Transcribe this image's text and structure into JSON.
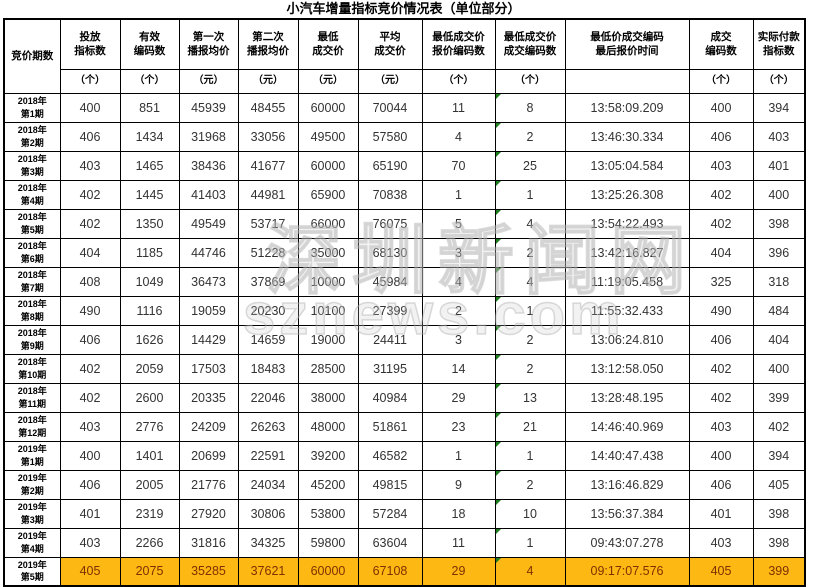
{
  "title": "小汽车增量指标竞价情况表（单位部分）",
  "watermark": {
    "line1": "深圳新闻网",
    "line2": "sznews.com"
  },
  "colors": {
    "border": "#000000",
    "body_text": "#333333",
    "header_text": "#000000",
    "highlight_bg": "#FDB813",
    "highlight_text": "#7F3000",
    "triangle": "#1E7E1E"
  },
  "table": {
    "columns": [
      {
        "label": "竞价期数",
        "unit": ""
      },
      {
        "label": "投放\n指标数",
        "unit": "（个）"
      },
      {
        "label": "有效\n编码数",
        "unit": "（个）"
      },
      {
        "label": "第一次\n播报均价",
        "unit": "（元）"
      },
      {
        "label": "第二次\n播报均价",
        "unit": "（元）"
      },
      {
        "label": "最低\n成交价",
        "unit": "（元）"
      },
      {
        "label": "平均\n成交价",
        "unit": "（元）"
      },
      {
        "label": "最低成交价\n报价编码数",
        "unit": "（个）"
      },
      {
        "label": "最低成交价\n成交编码数",
        "unit": "（个）"
      },
      {
        "label": "最低价成交编码\n最后报价时间",
        "unit": ""
      },
      {
        "label": "成交\n编码数",
        "unit": "（个）"
      },
      {
        "label": "实际付款\n指标数",
        "unit": "（个）"
      }
    ],
    "flag_column_index": 7,
    "rows": [
      {
        "period": "2018年\n第1期",
        "values": [
          "400",
          "851",
          "45939",
          "48455",
          "60000",
          "70044",
          "11",
          "8",
          "13:58:09.209",
          "400",
          "394"
        ],
        "highlight": false
      },
      {
        "period": "2018年\n第2期",
        "values": [
          "406",
          "1434",
          "31968",
          "33056",
          "49500",
          "57580",
          "4",
          "2",
          "13:46:30.334",
          "406",
          "403"
        ],
        "highlight": false
      },
      {
        "period": "2018年\n第3期",
        "values": [
          "403",
          "1465",
          "38436",
          "41677",
          "60000",
          "65190",
          "70",
          "25",
          "13:05:04.584",
          "403",
          "401"
        ],
        "highlight": false
      },
      {
        "period": "2018年\n第4期",
        "values": [
          "402",
          "1445",
          "41403",
          "44981",
          "65900",
          "70838",
          "1",
          "1",
          "13:25:26.308",
          "402",
          "400"
        ],
        "highlight": false
      },
      {
        "period": "2018年\n第5期",
        "values": [
          "402",
          "1350",
          "49549",
          "53717",
          "66000",
          "76075",
          "5",
          "4",
          "13:54:22.493",
          "402",
          "398"
        ],
        "highlight": false
      },
      {
        "period": "2018年\n第6期",
        "values": [
          "404",
          "1185",
          "44746",
          "51228",
          "35000",
          "68130",
          "3",
          "2",
          "13:42:16.827",
          "404",
          "396"
        ],
        "highlight": false
      },
      {
        "period": "2018年\n第7期",
        "values": [
          "408",
          "1049",
          "36473",
          "37869",
          "10000",
          "45984",
          "4",
          "4",
          "11:19:05.458",
          "325",
          "318"
        ],
        "highlight": false
      },
      {
        "period": "2018年\n第8期",
        "values": [
          "490",
          "1116",
          "19059",
          "20230",
          "10100",
          "27399",
          "2",
          "1",
          "11:55:32.433",
          "490",
          "484"
        ],
        "highlight": false
      },
      {
        "period": "2018年\n第9期",
        "values": [
          "406",
          "1626",
          "14429",
          "14659",
          "19000",
          "24411",
          "3",
          "2",
          "13:06:24.810",
          "406",
          "404"
        ],
        "highlight": false
      },
      {
        "period": "2018年\n第10期",
        "values": [
          "402",
          "2059",
          "17503",
          "18483",
          "28500",
          "31195",
          "14",
          "2",
          "13:12:58.050",
          "402",
          "400"
        ],
        "highlight": false
      },
      {
        "period": "2018年\n第11期",
        "values": [
          "402",
          "2600",
          "20335",
          "22046",
          "38000",
          "40984",
          "29",
          "13",
          "13:28:48.195",
          "402",
          "399"
        ],
        "highlight": false
      },
      {
        "period": "2018年\n第12期",
        "values": [
          "403",
          "2776",
          "24209",
          "26263",
          "48000",
          "51861",
          "23",
          "21",
          "14:46:40.969",
          "403",
          "402"
        ],
        "highlight": false
      },
      {
        "period": "2019年\n第1期",
        "values": [
          "400",
          "1401",
          "20699",
          "22591",
          "39200",
          "46582",
          "1",
          "1",
          "14:40:47.438",
          "400",
          "394"
        ],
        "highlight": false
      },
      {
        "period": "2019年\n第2期",
        "values": [
          "406",
          "2005",
          "21776",
          "24034",
          "45200",
          "49815",
          "9",
          "2",
          "13:16:46.829",
          "406",
          "405"
        ],
        "highlight": false
      },
      {
        "period": "2019年\n第3期",
        "values": [
          "401",
          "2319",
          "27920",
          "30806",
          "53800",
          "57284",
          "18",
          "10",
          "13:56:37.384",
          "401",
          "398"
        ],
        "highlight": false
      },
      {
        "period": "2019年\n第4期",
        "values": [
          "403",
          "2266",
          "31816",
          "34325",
          "59800",
          "63604",
          "11",
          "1",
          "09:43:07.278",
          "403",
          "398"
        ],
        "highlight": false
      },
      {
        "period": "2019年\n第5期",
        "values": [
          "405",
          "2075",
          "35285",
          "37621",
          "60000",
          "67108",
          "29",
          "4",
          "09:17:07.576",
          "405",
          "399"
        ],
        "highlight": true
      }
    ]
  }
}
